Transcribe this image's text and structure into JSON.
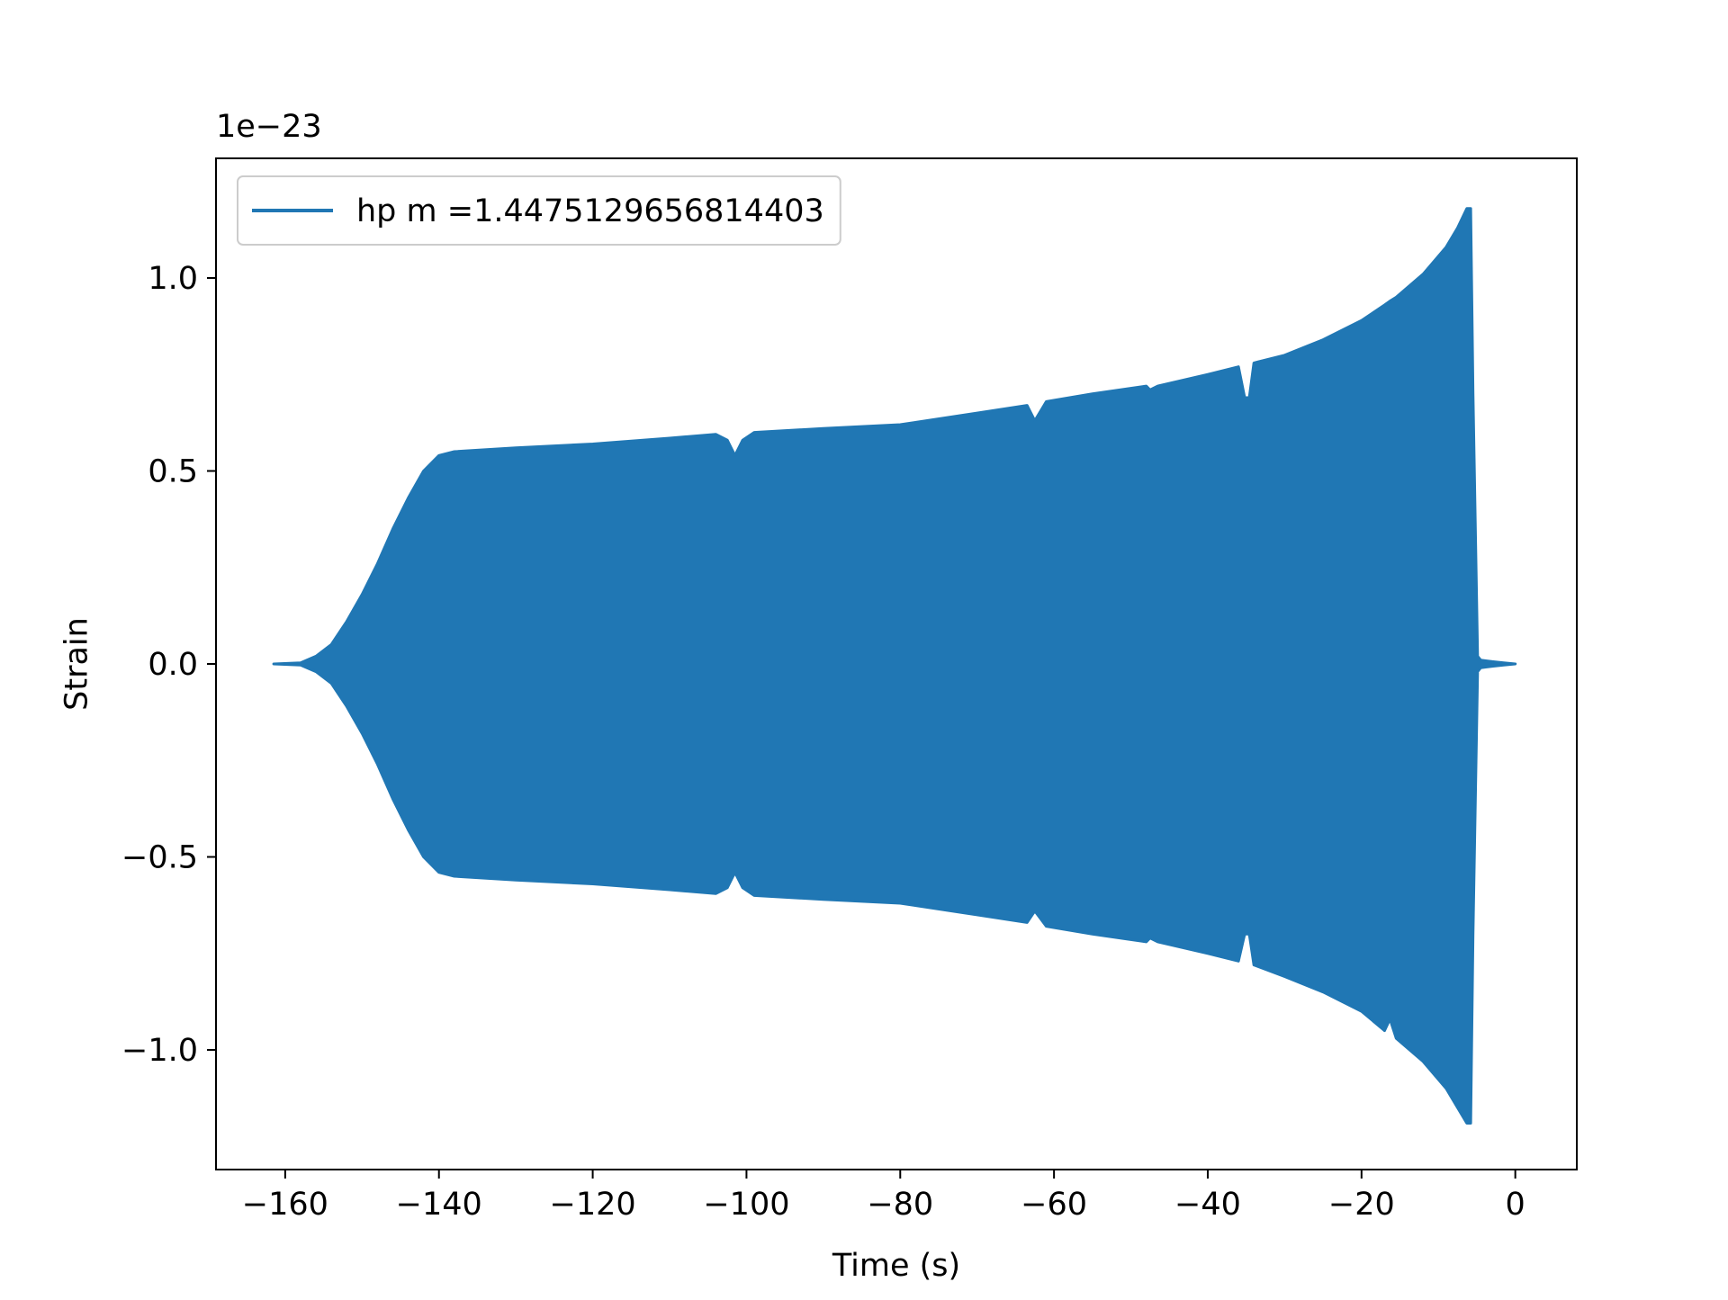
{
  "chart_data": {
    "type": "area",
    "title": "",
    "xlabel": "Time (s)",
    "ylabel": "Strain",
    "y_scale_label": "1e−23",
    "xlim": [
      -169,
      8
    ],
    "ylim": [
      -1.31,
      1.31
    ],
    "xticks": [
      -160,
      -140,
      -120,
      -100,
      -80,
      -60,
      -40,
      -20,
      0
    ],
    "xtick_labels": [
      "−160",
      "−140",
      "−120",
      "−100",
      "−80",
      "−60",
      "−40",
      "−20",
      "0"
    ],
    "yticks": [
      -1.0,
      -0.5,
      0.0,
      0.5,
      1.0
    ],
    "ytick_labels": [
      "−1.0",
      "−0.5",
      "0.0",
      "0.5",
      "1.0"
    ],
    "grid": false,
    "legend_position": "upper left",
    "series": [
      {
        "name": "hp m =1.4475129656814403",
        "color": "#2077b4",
        "style": "dense oscillation filled envelope",
        "envelope": {
          "t": [
            -161.5,
            -158,
            -156,
            -154,
            -152,
            -150,
            -148,
            -146,
            -144,
            -142,
            -140,
            -138,
            -130,
            -120,
            -110,
            -104,
            -102.5,
            -101.5,
            -100.5,
            -99,
            -90,
            -80,
            -70,
            -63.5,
            -62.5,
            -61,
            -55,
            -48,
            -47.5,
            -46.5,
            -40,
            -36,
            -35.2,
            -34.6,
            -34,
            -30,
            -25,
            -20,
            -17,
            -16.3,
            -15.5,
            -12,
            -9,
            -7.5,
            -6.3,
            -5.8,
            -5.5,
            -4.9,
            -4.5,
            -3,
            -1.5,
            0
          ],
          "upper": [
            0.0,
            0.003,
            0.02,
            0.05,
            0.11,
            0.18,
            0.26,
            0.35,
            0.43,
            0.5,
            0.54,
            0.55,
            0.56,
            0.57,
            0.585,
            0.595,
            0.58,
            0.54,
            0.58,
            0.6,
            0.61,
            0.62,
            0.65,
            0.67,
            0.63,
            0.68,
            0.7,
            0.72,
            0.71,
            0.72,
            0.75,
            0.77,
            0.69,
            0.69,
            0.78,
            0.8,
            0.84,
            0.89,
            0.93,
            0.94,
            0.95,
            1.01,
            1.08,
            1.13,
            1.18,
            1.18,
            0.7,
            0.02,
            0.01,
            0.006,
            0.003,
            0.0
          ],
          "lower": [
            0.0,
            -0.003,
            -0.02,
            -0.05,
            -0.11,
            -0.18,
            -0.26,
            -0.35,
            -0.43,
            -0.5,
            -0.54,
            -0.55,
            -0.56,
            -0.57,
            -0.585,
            -0.595,
            -0.58,
            -0.54,
            -0.58,
            -0.6,
            -0.61,
            -0.62,
            -0.65,
            -0.67,
            -0.64,
            -0.68,
            -0.7,
            -0.72,
            -0.71,
            -0.72,
            -0.75,
            -0.77,
            -0.7,
            -0.7,
            -0.78,
            -0.81,
            -0.85,
            -0.9,
            -0.95,
            -0.92,
            -0.97,
            -1.03,
            -1.1,
            -1.15,
            -1.19,
            -1.19,
            -0.7,
            -0.02,
            -0.01,
            -0.006,
            -0.003,
            0.0
          ]
        }
      }
    ]
  }
}
